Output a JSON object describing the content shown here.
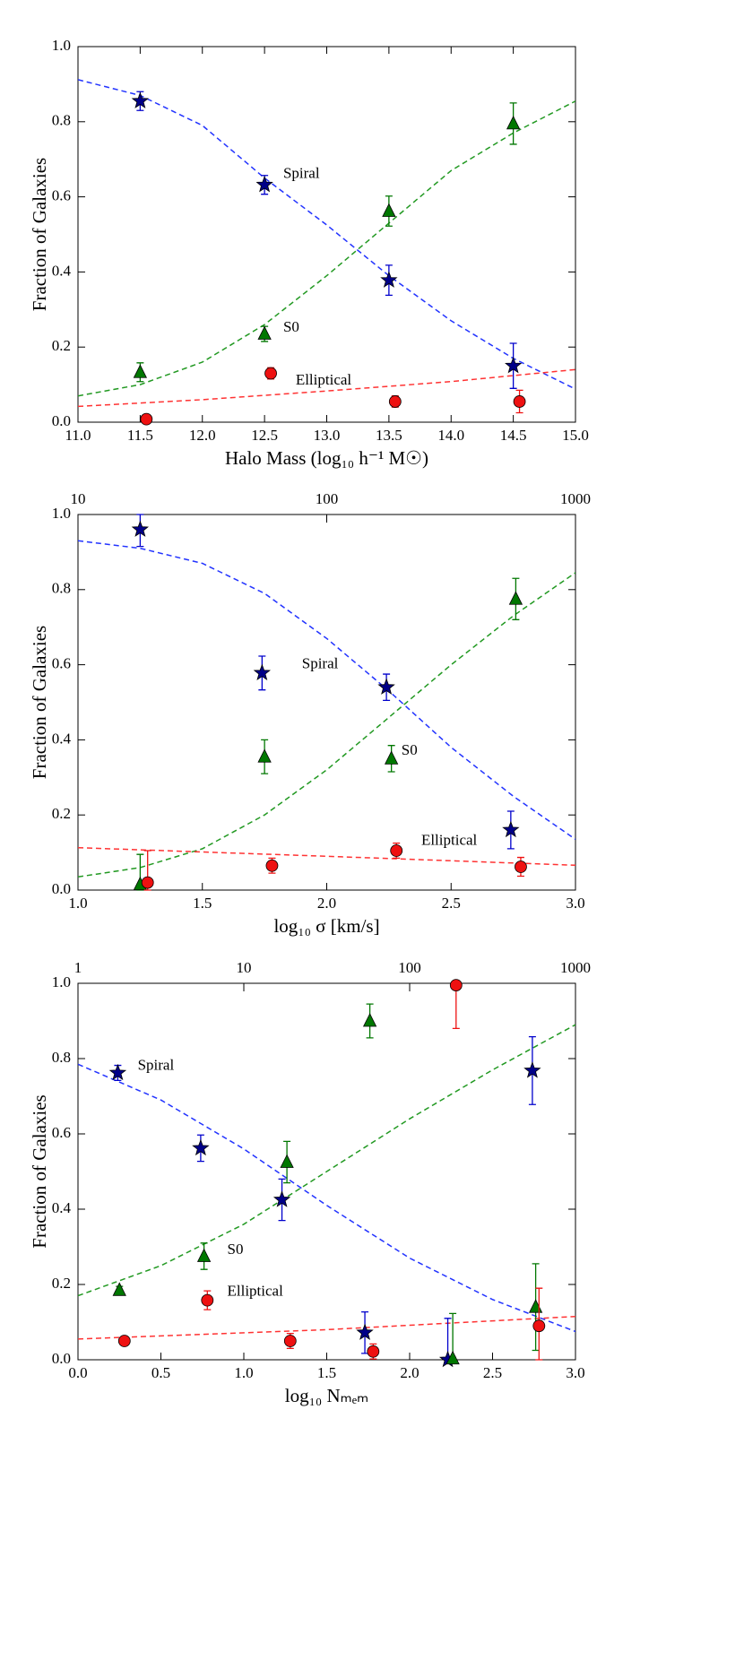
{
  "chart_data": [
    {
      "type": "scatter",
      "xlabel": "Halo Mass (log₁₀ h⁻¹ M☉)",
      "ylabel": "Fraction of Galaxies",
      "xlim": [
        11,
        15
      ],
      "ylim": [
        0,
        1
      ],
      "xticks": [
        {
          "value": 11,
          "label": "11.0"
        },
        11.5,
        {
          "value": 12,
          "label": "12.0"
        },
        12.5,
        {
          "value": 13,
          "label": "13.0"
        },
        13.5,
        {
          "value": 14,
          "label": "14.0"
        },
        14.5,
        {
          "value": 15,
          "label": "15.0"
        }
      ],
      "yticks": [
        {
          "value": 0,
          "label": "0.0"
        },
        0.2,
        0.4,
        0.6,
        0.8,
        {
          "value": 1,
          "label": "1.0"
        }
      ],
      "series": [
        {
          "name": "Spiral",
          "color": "#000088",
          "marker": "star",
          "x": [
            11.5,
            12.5,
            13.5,
            14.5
          ],
          "values": [
            0.855,
            0.632,
            0.378,
            0.15
          ],
          "errors": [
            0.025,
            0.025,
            0.04,
            0.06
          ]
        },
        {
          "name": "S0",
          "color": "#007700",
          "marker": "triangle",
          "x": [
            11.5,
            12.5,
            13.5,
            14.5
          ],
          "values": [
            0.133,
            0.235,
            0.562,
            0.795
          ],
          "errors": [
            0.025,
            0.02,
            0.04,
            0.055
          ]
        },
        {
          "name": "Elliptical",
          "color": "#ee1111",
          "marker": "circle",
          "x": [
            11.55,
            12.55,
            13.55,
            14.55
          ],
          "values": [
            0.008,
            0.13,
            0.055,
            0.055
          ],
          "errors": [
            0.01,
            0.015,
            0.015,
            0.03
          ]
        }
      ],
      "fits": [
        {
          "color": "#2233ff",
          "x": [
            11,
            11.5,
            12,
            12.5,
            13,
            13.5,
            14,
            14.5,
            15
          ],
          "values": [
            0.912,
            0.87,
            0.79,
            0.65,
            0.525,
            0.39,
            0.27,
            0.17,
            0.088
          ]
        },
        {
          "color": "#229922",
          "x": [
            11,
            11.5,
            12,
            12.5,
            13,
            13.5,
            14,
            14.5,
            15
          ],
          "values": [
            0.07,
            0.1,
            0.16,
            0.26,
            0.39,
            0.53,
            0.67,
            0.77,
            0.855
          ]
        },
        {
          "color": "#ff3333",
          "x": [
            11,
            12,
            13,
            14,
            15
          ],
          "values": [
            0.042,
            0.06,
            0.083,
            0.108,
            0.14
          ]
        }
      ]
    },
    {
      "type": "scatter",
      "xlabel": "log₁₀ σ [km/s]",
      "ylabel": "Fraction of Galaxies",
      "xlim": [
        1,
        3
      ],
      "ylim": [
        0,
        1
      ],
      "x2lim": [
        10,
        1000
      ],
      "x2scale": "log",
      "xticks": [
        {
          "value": 1,
          "label": "1.0"
        },
        1.5,
        {
          "value": 2,
          "label": "2.0"
        },
        2.5,
        {
          "value": 3,
          "label": "3.0"
        }
      ],
      "x2ticks": [
        10,
        100,
        1000
      ],
      "yticks": [
        {
          "value": 0,
          "label": "0.0"
        },
        0.2,
        0.4,
        0.6,
        0.8,
        {
          "value": 1,
          "label": "1.0"
        }
      ],
      "series": [
        {
          "name": "Spiral",
          "color": "#000088",
          "marker": "star",
          "x": [
            1.25,
            1.74,
            2.24,
            2.74
          ],
          "values": [
            0.96,
            0.578,
            0.54,
            0.16
          ],
          "errors": [
            0.045,
            0.045,
            0.035,
            0.05
          ]
        },
        {
          "name": "S0",
          "color": "#007700",
          "marker": "triangle",
          "x": [
            1.25,
            1.75,
            2.26,
            2.76
          ],
          "values": [
            0.015,
            0.355,
            0.35,
            0.775
          ],
          "errors": [
            0.08,
            0.045,
            0.035,
            0.055
          ]
        },
        {
          "name": "Elliptical",
          "color": "#ee1111",
          "marker": "circle",
          "x": [
            1.28,
            1.78,
            2.28,
            2.78
          ],
          "values": [
            0.02,
            0.065,
            0.105,
            0.062
          ],
          "errors": [
            0.085,
            0.02,
            0.02,
            0.025
          ]
        }
      ],
      "fits": [
        {
          "color": "#2233ff",
          "x": [
            1,
            1.25,
            1.5,
            1.75,
            2,
            2.25,
            2.5,
            2.75,
            3
          ],
          "values": [
            0.93,
            0.91,
            0.87,
            0.79,
            0.67,
            0.53,
            0.38,
            0.25,
            0.135
          ]
        },
        {
          "color": "#229922",
          "x": [
            1,
            1.25,
            1.5,
            1.75,
            2,
            2.25,
            2.5,
            2.75,
            3
          ],
          "values": [
            0.035,
            0.06,
            0.11,
            0.2,
            0.32,
            0.46,
            0.6,
            0.73,
            0.845
          ]
        },
        {
          "color": "#ff3333",
          "x": [
            1,
            2,
            3
          ],
          "values": [
            0.113,
            0.09,
            0.066
          ]
        }
      ]
    },
    {
      "type": "scatter",
      "xlabel": "log₁₀ Nₘₑₘ",
      "ylabel": "Fraction of Galaxies",
      "xlim": [
        0,
        3
      ],
      "ylim": [
        0,
        1
      ],
      "x2lim": [
        1,
        1000
      ],
      "x2scale": "log",
      "xticks": [
        {
          "value": 0,
          "label": "0.0"
        },
        0.5,
        {
          "value": 1,
          "label": "1.0"
        },
        1.5,
        {
          "value": 2,
          "label": "2.0"
        },
        2.5,
        {
          "value": 3,
          "label": "3.0"
        }
      ],
      "x2ticks": [
        1,
        10,
        100,
        1000
      ],
      "yticks": [
        {
          "value": 0,
          "label": "0.0"
        },
        0.2,
        0.4,
        0.6,
        0.8,
        {
          "value": 1,
          "label": "1.0"
        }
      ],
      "series": [
        {
          "name": "Spiral",
          "color": "#000088",
          "marker": "star",
          "x": [
            0.24,
            0.74,
            1.23,
            1.73,
            2.23,
            2.74
          ],
          "values": [
            0.762,
            0.562,
            0.425,
            0.072,
            0,
            0.768
          ],
          "errors": [
            0.02,
            0.035,
            0.055,
            0.055,
            0.11,
            0.09
          ]
        },
        {
          "name": "S0",
          "color": "#007700",
          "marker": "triangle",
          "x": [
            0.25,
            0.76,
            1.26,
            1.76,
            2.26,
            2.76
          ],
          "values": [
            0.185,
            0.275,
            0.525,
            0.9,
            0.003,
            0.14
          ],
          "errors": [
            0.01,
            0.035,
            0.055,
            0.045,
            0.12,
            0.115
          ]
        },
        {
          "name": "Elliptical",
          "color": "#ee1111",
          "marker": "circle",
          "x": [
            0.28,
            0.78,
            1.28,
            1.78,
            2.28,
            2.78
          ],
          "values": [
            0.05,
            0.158,
            0.05,
            0.022,
            0.995,
            0.09
          ],
          "errors": [
            0.008,
            0.025,
            0.02,
            0.02,
            0.115,
            0.1
          ]
        }
      ],
      "fits": [
        {
          "color": "#2233ff",
          "x": [
            0,
            0.5,
            1,
            1.5,
            2,
            2.5,
            3
          ],
          "values": [
            0.785,
            0.69,
            0.56,
            0.41,
            0.27,
            0.16,
            0.075
          ]
        },
        {
          "color": "#229922",
          "x": [
            0,
            0.5,
            1,
            1.5,
            2,
            2.5,
            3
          ],
          "values": [
            0.17,
            0.25,
            0.36,
            0.5,
            0.64,
            0.77,
            0.89
          ]
        },
        {
          "color": "#ff3333",
          "x": [
            0,
            1.5,
            3
          ],
          "values": [
            0.055,
            0.08,
            0.115
          ]
        }
      ]
    }
  ]
}
